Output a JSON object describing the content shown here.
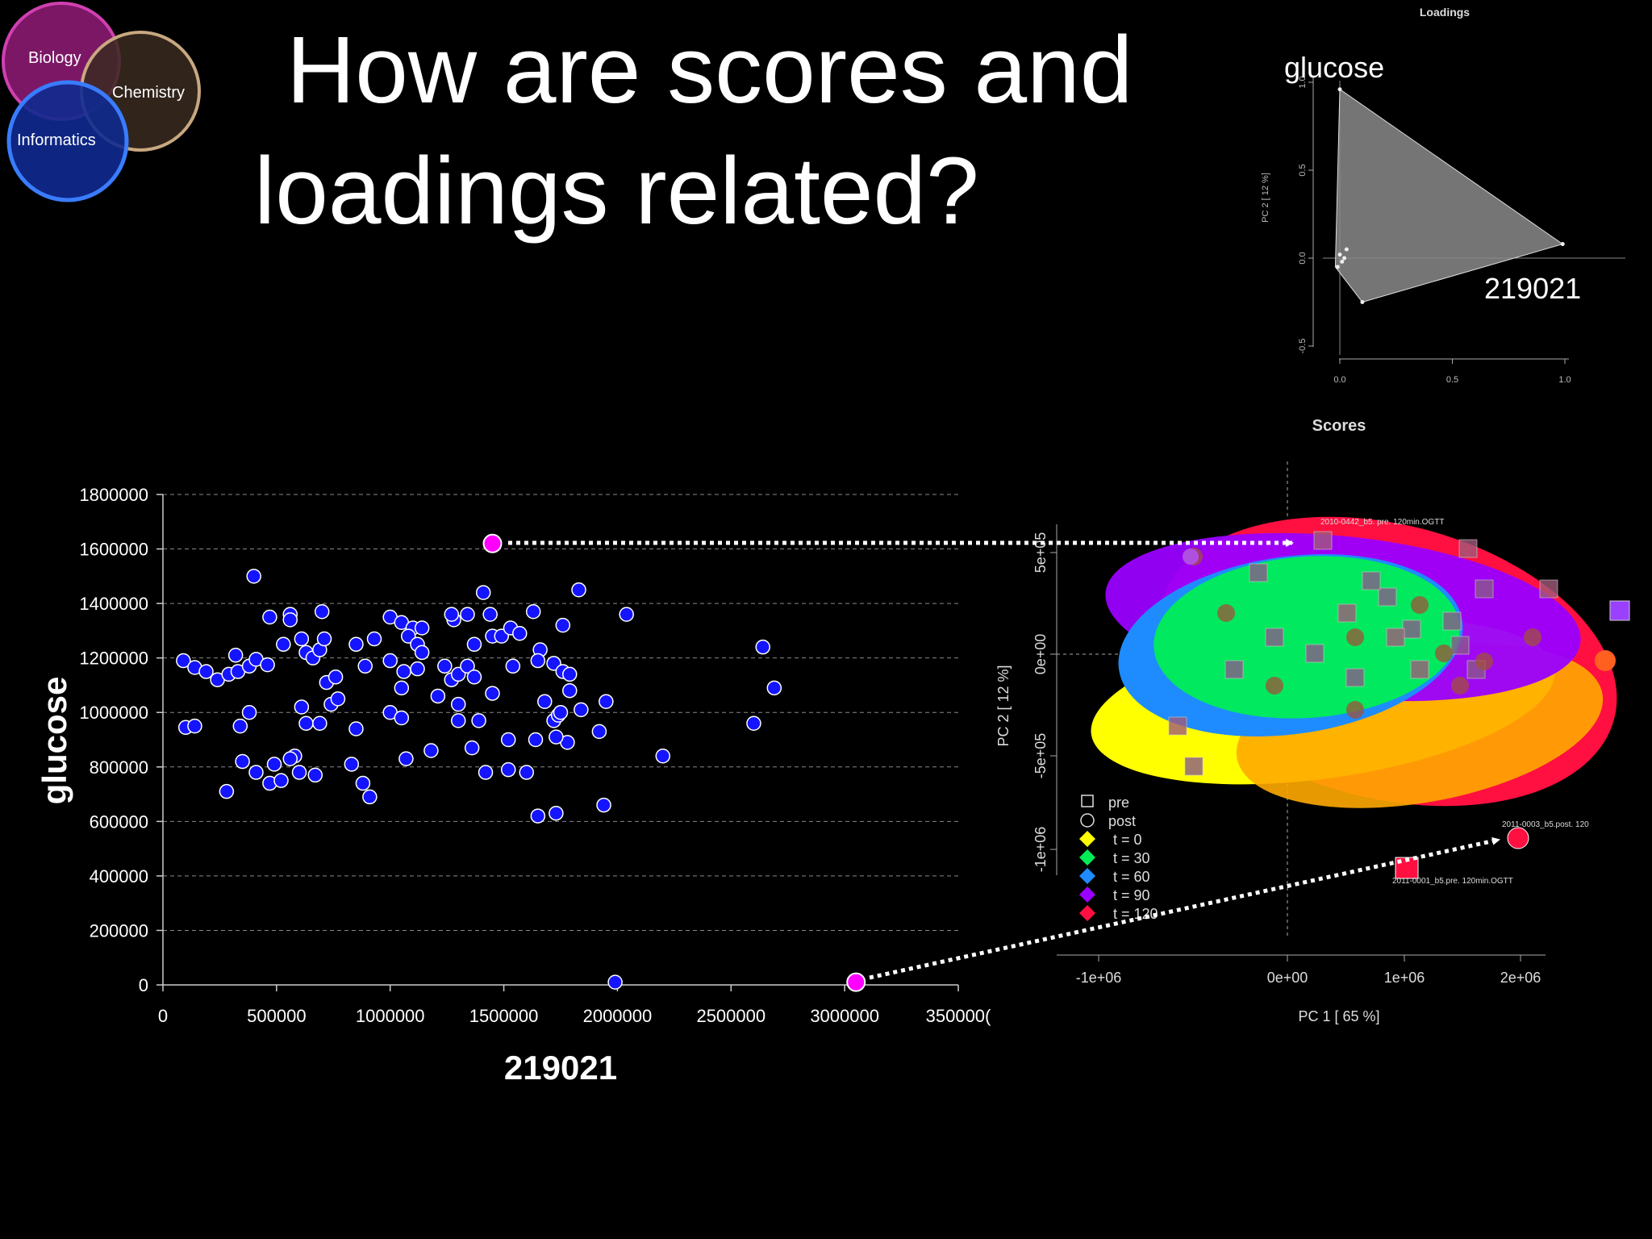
{
  "slide": {
    "title_line1": "How are scores and",
    "title_line2": "loadings related?",
    "logo": {
      "biology": "Biology",
      "chemistry": "Chemistry",
      "informatics": "Informatics"
    }
  },
  "colors": {
    "point": "#1414ff",
    "highlight": "#ff00ff",
    "biology": "#b0208a",
    "chemistry": "#3a2a1e",
    "informatics": "#1030c8"
  },
  "chart_data": [
    {
      "type": "scatter",
      "title": "",
      "xlabel": "219021",
      "ylabel": "glucose",
      "xlim": [
        0,
        3500000
      ],
      "ylim": [
        0,
        1800000
      ],
      "xticks": [
        "0",
        "500000",
        "1000000",
        "1500000",
        "2000000",
        "2500000",
        "3000000",
        "350000("
      ],
      "yticks": [
        "0",
        "200000",
        "400000",
        "600000",
        "800000",
        "1000000",
        "1200000",
        "1400000",
        "1600000",
        "1800000"
      ],
      "grid": "horizontal dashed",
      "points": [
        [
          90000,
          1190000
        ],
        [
          140000,
          1165000
        ],
        [
          190000,
          1150000
        ],
        [
          240000,
          1120000
        ],
        [
          290000,
          1140000
        ],
        [
          330000,
          1150000
        ],
        [
          320000,
          1210000
        ],
        [
          380000,
          1170000
        ],
        [
          410000,
          1195000
        ],
        [
          460000,
          1175000
        ],
        [
          100000,
          945000
        ],
        [
          140000,
          950000
        ],
        [
          340000,
          950000
        ],
        [
          380000,
          1000000
        ],
        [
          280000,
          710000
        ],
        [
          350000,
          820000
        ],
        [
          410000,
          780000
        ],
        [
          470000,
          740000
        ],
        [
          490000,
          810000
        ],
        [
          520000,
          750000
        ],
        [
          400000,
          1500000
        ],
        [
          470000,
          1350000
        ],
        [
          560000,
          1360000
        ],
        [
          560000,
          1340000
        ],
        [
          700000,
          1370000
        ],
        [
          530000,
          1250000
        ],
        [
          610000,
          1270000
        ],
        [
          630000,
          1220000
        ],
        [
          660000,
          1200000
        ],
        [
          690000,
          1230000
        ],
        [
          710000,
          1270000
        ],
        [
          720000,
          1110000
        ],
        [
          760000,
          1130000
        ],
        [
          740000,
          1030000
        ],
        [
          770000,
          1050000
        ],
        [
          630000,
          960000
        ],
        [
          610000,
          1020000
        ],
        [
          690000,
          960000
        ],
        [
          580000,
          840000
        ],
        [
          560000,
          830000
        ],
        [
          600000,
          780000
        ],
        [
          670000,
          770000
        ],
        [
          830000,
          810000
        ],
        [
          880000,
          740000
        ],
        [
          910000,
          690000
        ],
        [
          850000,
          940000
        ],
        [
          850000,
          1250000
        ],
        [
          930000,
          1270000
        ],
        [
          890000,
          1170000
        ],
        [
          1000000,
          1190000
        ],
        [
          1000000,
          1350000
        ],
        [
          1050000,
          1330000
        ],
        [
          1100000,
          1310000
        ],
        [
          1140000,
          1310000
        ],
        [
          1080000,
          1280000
        ],
        [
          1120000,
          1250000
        ],
        [
          1140000,
          1220000
        ],
        [
          1060000,
          1150000
        ],
        [
          1120000,
          1160000
        ],
        [
          1050000,
          1090000
        ],
        [
          1000000,
          1000000
        ],
        [
          1050000,
          980000
        ],
        [
          1070000,
          830000
        ],
        [
          1180000,
          860000
        ],
        [
          1210000,
          1060000
        ],
        [
          1240000,
          1170000
        ],
        [
          1270000,
          1120000
        ],
        [
          1280000,
          1340000
        ],
        [
          1270000,
          1360000
        ],
        [
          1340000,
          1360000
        ],
        [
          1300000,
          1140000
        ],
        [
          1340000,
          1170000
        ],
        [
          1370000,
          1130000
        ],
        [
          1300000,
          1030000
        ],
        [
          1300000,
          970000
        ],
        [
          1390000,
          970000
        ],
        [
          1360000,
          870000
        ],
        [
          1420000,
          780000
        ],
        [
          1410000,
          1440000
        ],
        [
          1440000,
          1360000
        ],
        [
          1450000,
          1280000
        ],
        [
          1490000,
          1280000
        ],
        [
          1370000,
          1250000
        ],
        [
          1450000,
          1070000
        ],
        [
          1530000,
          1310000
        ],
        [
          1570000,
          1290000
        ],
        [
          1540000,
          1170000
        ],
        [
          1520000,
          900000
        ],
        [
          1520000,
          790000
        ],
        [
          1600000,
          780000
        ],
        [
          1630000,
          1370000
        ],
        [
          1660000,
          1230000
        ],
        [
          1650000,
          1190000
        ],
        [
          1720000,
          1180000
        ],
        [
          1760000,
          1150000
        ],
        [
          1790000,
          1140000
        ],
        [
          1790000,
          1080000
        ],
        [
          1680000,
          1040000
        ],
        [
          1640000,
          900000
        ],
        [
          1720000,
          970000
        ],
        [
          1740000,
          990000
        ],
        [
          1750000,
          1000000
        ],
        [
          1780000,
          890000
        ],
        [
          1730000,
          910000
        ],
        [
          1840000,
          1010000
        ],
        [
          1760000,
          1320000
        ],
        [
          1830000,
          1450000
        ],
        [
          1920000,
          930000
        ],
        [
          1950000,
          1040000
        ],
        [
          1940000,
          660000
        ],
        [
          1650000,
          620000
        ],
        [
          1730000,
          630000
        ],
        [
          2040000,
          1360000
        ],
        [
          2200000,
          840000
        ],
        [
          2600000,
          960000
        ],
        [
          2640000,
          1240000
        ],
        [
          2690000,
          1090000
        ],
        [
          1990000,
          10000
        ]
      ],
      "highlighted_points": [
        [
          1450000,
          1620000
        ],
        [
          3050000,
          10000
        ]
      ]
    },
    {
      "type": "scatter",
      "title": "Loadings",
      "xlabel": "",
      "ylabel": "PC 2 [ 12 %]",
      "xlim": [
        -0.05,
        1.2
      ],
      "ylim": [
        -0.6,
        1.2
      ],
      "xticks": [
        "0.0",
        "0.5",
        "1.0"
      ],
      "yticks": [
        "-0.5",
        "0.0",
        "0.5",
        "1.0"
      ],
      "annotations": [
        "glucose",
        "219021"
      ],
      "points": [
        [
          0.0,
          0.96
        ],
        [
          0.99,
          0.08
        ],
        [
          0.1,
          -0.25
        ],
        [
          0.0,
          0.02
        ],
        [
          0.01,
          -0.02
        ],
        [
          0.02,
          0.0
        ],
        [
          -0.01,
          -0.05
        ],
        [
          0.03,
          0.05
        ]
      ]
    },
    {
      "type": "scatter",
      "title": "Scores",
      "xlabel": "PC 1 [ 65 %]",
      "ylabel": "PC 2 [ 12 %]",
      "xticks": [
        "-1e+06",
        "0e+00",
        "1e+06",
        "2e+06"
      ],
      "yticks": [
        "-1e+06",
        "-5e+05",
        "0e+00",
        "5e+05"
      ],
      "legend": {
        "position": "bottom-left",
        "shapes": [
          {
            "label": "pre",
            "marker": "square"
          },
          {
            "label": "post",
            "marker": "circle"
          }
        ],
        "groups": [
          {
            "label": "t = 0",
            "color": "#ffff00"
          },
          {
            "label": "t = 30",
            "color": "#00ee55"
          },
          {
            "label": "t = 60",
            "color": "#1e8cff"
          },
          {
            "label": "t = 90",
            "color": "#9a00ff"
          },
          {
            "label": "t = 120",
            "color": "#ff1040"
          }
        ]
      },
      "annotations": [
        "2010-0442_b5. pre. 120min.OGTT",
        "2011-0003_b5.post. 120",
        "2011-0001_b5.pre. 120min.OGTT"
      ]
    }
  ]
}
